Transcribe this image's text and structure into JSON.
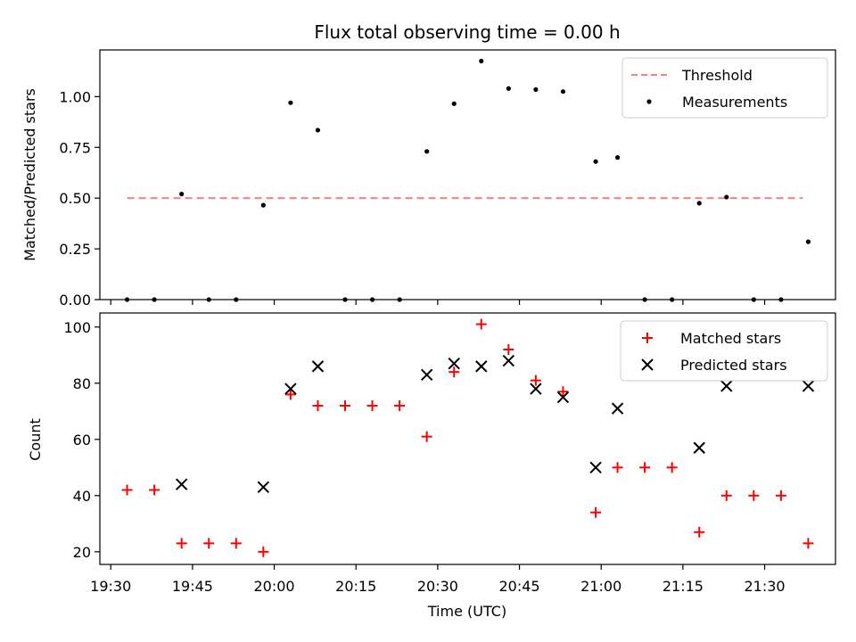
{
  "chart_data": [
    {
      "type": "scatter",
      "title": "Flux total observing time = 0.00 h",
      "xlabel": "",
      "ylabel": "Matched/Predicted stars",
      "ylim": [
        0,
        1.23
      ],
      "yticks": [
        0,
        0.25,
        0.5,
        0.75,
        1.0
      ],
      "ytick_labels": [
        "0.00",
        "0.25",
        "0.50",
        "0.75",
        "1.00"
      ],
      "xlim": [
        "19:28",
        "21:43"
      ],
      "xticks": [
        "19:30",
        "19:45",
        "20:00",
        "20:15",
        "20:30",
        "20:45",
        "21:00",
        "21:15",
        "21:30"
      ],
      "legend": {
        "position": "top-right",
        "entries": [
          "Threshold",
          "Measurements"
        ]
      },
      "grid": false,
      "series": [
        {
          "name": "Threshold",
          "kind": "dashed-line",
          "color": "#ff7f7f",
          "points": [
            {
              "x": "19:33",
              "y": 0.5
            },
            {
              "x": "21:37",
              "y": 0.5
            }
          ]
        },
        {
          "name": "Measurements",
          "kind": "dot",
          "color": "#000000",
          "points": [
            {
              "x": "19:33",
              "y": 0.0
            },
            {
              "x": "19:38",
              "y": 0.0
            },
            {
              "x": "19:43",
              "y": 0.52
            },
            {
              "x": "19:48",
              "y": 0.0
            },
            {
              "x": "19:53",
              "y": 0.0
            },
            {
              "x": "19:58",
              "y": 0.465
            },
            {
              "x": "20:03",
              "y": 0.97
            },
            {
              "x": "20:08",
              "y": 0.835
            },
            {
              "x": "20:13",
              "y": 0.0
            },
            {
              "x": "20:18",
              "y": 0.0
            },
            {
              "x": "20:23",
              "y": 0.0
            },
            {
              "x": "20:28",
              "y": 0.73
            },
            {
              "x": "20:33",
              "y": 0.965
            },
            {
              "x": "20:38",
              "y": 1.175
            },
            {
              "x": "20:43",
              "y": 1.04
            },
            {
              "x": "20:48",
              "y": 1.035
            },
            {
              "x": "20:53",
              "y": 1.025
            },
            {
              "x": "20:59",
              "y": 0.68
            },
            {
              "x": "21:03",
              "y": 0.7
            },
            {
              "x": "21:08",
              "y": 0.0
            },
            {
              "x": "21:13",
              "y": 0.0
            },
            {
              "x": "21:18",
              "y": 0.475
            },
            {
              "x": "21:23",
              "y": 0.505
            },
            {
              "x": "21:28",
              "y": 0.0
            },
            {
              "x": "21:33",
              "y": 0.0
            },
            {
              "x": "21:38",
              "y": 0.285
            }
          ]
        }
      ]
    },
    {
      "type": "scatter",
      "title": "",
      "xlabel": "Time (UTC)",
      "ylabel": "Count",
      "ylim": [
        15.5,
        105
      ],
      "yticks": [
        20,
        40,
        60,
        80,
        100
      ],
      "ytick_labels": [
        "20",
        "40",
        "60",
        "80",
        "100"
      ],
      "xlim": [
        "19:28",
        "21:43"
      ],
      "xticks": [
        "19:30",
        "19:45",
        "20:00",
        "20:15",
        "20:30",
        "20:45",
        "21:00",
        "21:15",
        "21:30"
      ],
      "xtick_labels": [
        "19:30",
        "19:45",
        "20:00",
        "20:15",
        "20:30",
        "20:45",
        "21:00",
        "21:15",
        "21:30"
      ],
      "legend": {
        "position": "top-right",
        "entries": [
          "Matched stars",
          "Predicted stars"
        ]
      },
      "grid": false,
      "series": [
        {
          "name": "Matched stars",
          "kind": "plus",
          "color": "#ff0000",
          "points": [
            {
              "x": "19:33",
              "y": 42
            },
            {
              "x": "19:38",
              "y": 42
            },
            {
              "x": "19:43",
              "y": 23
            },
            {
              "x": "19:48",
              "y": 23
            },
            {
              "x": "19:53",
              "y": 23
            },
            {
              "x": "19:58",
              "y": 20
            },
            {
              "x": "20:03",
              "y": 76
            },
            {
              "x": "20:08",
              "y": 72
            },
            {
              "x": "20:13",
              "y": 72
            },
            {
              "x": "20:18",
              "y": 72
            },
            {
              "x": "20:23",
              "y": 72
            },
            {
              "x": "20:28",
              "y": 61
            },
            {
              "x": "20:33",
              "y": 84
            },
            {
              "x": "20:38",
              "y": 101
            },
            {
              "x": "20:43",
              "y": 92
            },
            {
              "x": "20:48",
              "y": 81
            },
            {
              "x": "20:53",
              "y": 77
            },
            {
              "x": "20:59",
              "y": 34
            },
            {
              "x": "21:03",
              "y": 50
            },
            {
              "x": "21:08",
              "y": 50
            },
            {
              "x": "21:13",
              "y": 50
            },
            {
              "x": "21:18",
              "y": 27
            },
            {
              "x": "21:23",
              "y": 40
            },
            {
              "x": "21:28",
              "y": 40
            },
            {
              "x": "21:33",
              "y": 40
            },
            {
              "x": "21:38",
              "y": 23
            }
          ]
        },
        {
          "name": "Predicted stars",
          "kind": "x",
          "color": "#000000",
          "points": [
            {
              "x": "19:43",
              "y": 44
            },
            {
              "x": "19:58",
              "y": 43
            },
            {
              "x": "20:03",
              "y": 78
            },
            {
              "x": "20:08",
              "y": 86
            },
            {
              "x": "20:28",
              "y": 83
            },
            {
              "x": "20:33",
              "y": 87
            },
            {
              "x": "20:38",
              "y": 86
            },
            {
              "x": "20:43",
              "y": 88
            },
            {
              "x": "20:48",
              "y": 78
            },
            {
              "x": "20:53",
              "y": 75
            },
            {
              "x": "20:59",
              "y": 50
            },
            {
              "x": "21:03",
              "y": 71
            },
            {
              "x": "21:18",
              "y": 57
            },
            {
              "x": "21:23",
              "y": 79
            },
            {
              "x": "21:38",
              "y": 79
            }
          ]
        }
      ]
    }
  ]
}
